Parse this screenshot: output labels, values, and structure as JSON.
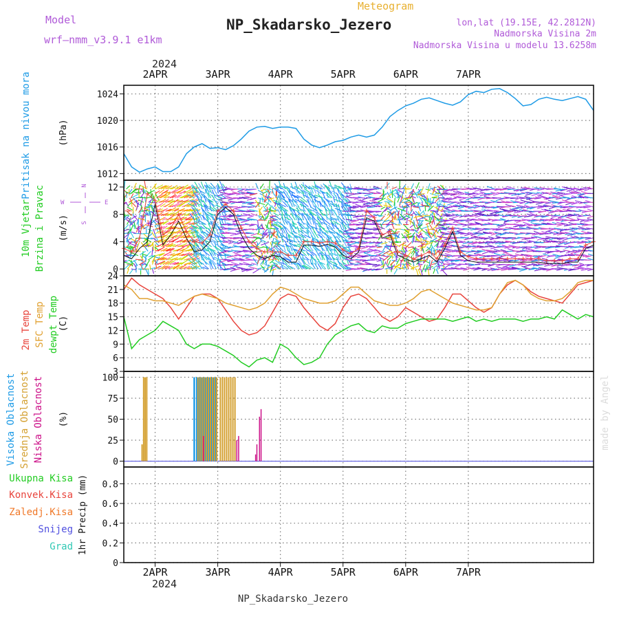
{
  "header": {
    "model_label": "Model",
    "model_name": "wrf—nmm_v3.9.1  e1km",
    "meteogram_label": "Meteogram",
    "station": "NP_Skadarsko_Jezero",
    "lonlat": "lon,lat (19.15E, 42.2812N)",
    "altitude": "Nadmorska Visina 2m",
    "model_altitude": "Nadmorska Visina u modelu 13.6258m",
    "footer_station": "NP_Skadarsko_Jezero",
    "watermark": "made by Angel"
  },
  "colors": {
    "pressure": "#1e9be6",
    "temp2m": "#e8443c",
    "sfc": "#e0a030",
    "dewpt": "#22cc22",
    "high_cloud": "#1e9be6",
    "mid_cloud": "#d4a030",
    "low_cloud": "#cc1088",
    "header_purple": "#b05ad8",
    "header_orange": "#e8b030",
    "total_precip": "#22cc22",
    "conv_precip": "#e8443c",
    "frozen_precip": "#f07828",
    "snow": "#5050e0",
    "hail": "#30c8b4"
  },
  "chart_data": [
    {
      "id": "pressure",
      "type": "line",
      "ylabel": "(hPa)",
      "side_labels": [
        "Pritisak na nivou mora"
      ],
      "yticks": [
        1012,
        1016,
        1020,
        1024
      ],
      "ylim": [
        1011,
        1025.3
      ],
      "x_start": 0,
      "x_step": 3,
      "series": [
        {
          "values": [
            1015.0,
            1013.0,
            1012.2,
            1012.7,
            1013.0,
            1012.3,
            1012.3,
            1013.0,
            1015.0,
            1016.0,
            1016.5,
            1015.8,
            1015.9,
            1015.6,
            1016.2,
            1017.2,
            1018.4,
            1019.0,
            1019.1,
            1018.8,
            1019.0,
            1019.0,
            1018.8,
            1017.2,
            1016.3,
            1015.9,
            1016.3,
            1016.8,
            1017.0,
            1017.5,
            1017.8,
            1017.5,
            1017.8,
            1019.0,
            1020.6,
            1021.5,
            1022.2,
            1022.6,
            1023.2,
            1023.4,
            1023.0,
            1022.6,
            1022.3,
            1022.8,
            1023.9,
            1024.4,
            1024.2,
            1024.7,
            1024.8,
            1024.2,
            1023.3,
            1022.2,
            1022.4,
            1023.2,
            1023.5,
            1023.2,
            1023.0,
            1023.3,
            1023.6,
            1023.2,
            1021.5
          ]
        }
      ]
    },
    {
      "id": "wind",
      "type": "line",
      "ylabel": "(m/s)",
      "side_labels": [
        "10m Vjetar",
        "Brzina i Pravac"
      ],
      "compass": [
        "N",
        "W",
        "E",
        "S"
      ],
      "yticks": [
        0,
        4,
        8,
        12
      ],
      "ylim": [
        -1,
        13
      ],
      "x_start": 0,
      "x_step": 3,
      "series": [
        {
          "name": "speed",
          "values": [
            2.0,
            1.5,
            3.0,
            4.0,
            9.5,
            3.5,
            5.0,
            7.0,
            4.5,
            2.5,
            2.8,
            4.0,
            8.0,
            9.0,
            8.0,
            5.0,
            3.0,
            2.0,
            1.5,
            2.0,
            1.8,
            1.0,
            1.0,
            3.5,
            3.5,
            3.3,
            3.6,
            3.2,
            2.0,
            1.5,
            2.5,
            7.5,
            7.0,
            4.5,
            5.0,
            2.0,
            1.5,
            1.0,
            1.5,
            2.0,
            1.0,
            3.0,
            5.5,
            2.0,
            1.2,
            1.0,
            1.0,
            1.0,
            1.0,
            1.0,
            1.0,
            1.0,
            1.0,
            1.0,
            0.8,
            0.8,
            0.8,
            1.0,
            1.0,
            3.0,
            3.5
          ]
        },
        {
          "name": "gust",
          "values": [
            3.0,
            2.5,
            4.5,
            11.0,
            10.0,
            5.0,
            6.0,
            8.0,
            5.5,
            4.0,
            3.8,
            5.0,
            8.5,
            9.5,
            8.5,
            6.0,
            4.0,
            3.0,
            2.5,
            2.5,
            2.5,
            2.0,
            2.0,
            4.0,
            4.0,
            3.8,
            4.0,
            3.8,
            2.8,
            2.2,
            3.0,
            8.5,
            7.5,
            5.0,
            5.5,
            2.5,
            2.0,
            1.5,
            2.0,
            2.5,
            1.5,
            3.5,
            6.0,
            2.5,
            1.8,
            1.5,
            1.5,
            1.5,
            1.5,
            1.5,
            1.5,
            1.5,
            1.5,
            1.5,
            1.2,
            1.2,
            1.2,
            1.5,
            1.5,
            3.5,
            4.0
          ]
        }
      ],
      "direction_bands": [
        {
          "start": 0,
          "end": 12,
          "palette": "mixed"
        },
        {
          "start": 12,
          "end": 27,
          "palette": "warm"
        },
        {
          "start": 27,
          "end": 39,
          "palette": "cool"
        },
        {
          "start": 39,
          "end": 51,
          "palette": "violet"
        },
        {
          "start": 51,
          "end": 59,
          "palette": "mixed"
        },
        {
          "start": 59,
          "end": 87,
          "palette": "cool"
        },
        {
          "start": 87,
          "end": 99,
          "palette": "violet"
        },
        {
          "start": 99,
          "end": 123,
          "palette": "mixed"
        },
        {
          "start": 123,
          "end": 159,
          "palette": "violet"
        },
        {
          "start": 159,
          "end": 180,
          "palette": "violet"
        }
      ]
    },
    {
      "id": "temperature",
      "type": "line",
      "ylabel": "(C)",
      "side_labels": [
        "2m Temp",
        "SFC Temp",
        "dewpt Temp"
      ],
      "yticks": [
        3,
        6,
        9,
        12,
        15,
        18,
        21,
        24
      ],
      "ylim": [
        3,
        24
      ],
      "x_start": 0,
      "x_step": 3,
      "series": [
        {
          "name": "2m Temp",
          "values": [
            21.0,
            23.5,
            22.0,
            21.0,
            20.0,
            19.0,
            17.0,
            14.5,
            17.0,
            19.5,
            20.0,
            20.0,
            19.0,
            16.5,
            14.0,
            12.0,
            11.0,
            11.5,
            13.0,
            16.0,
            19.0,
            20.0,
            19.5,
            17.0,
            15.0,
            13.0,
            12.0,
            13.5,
            17.0,
            19.5,
            20.0,
            19.0,
            17.0,
            15.0,
            14.0,
            15.0,
            17.0,
            16.0,
            15.0,
            14.0,
            14.5,
            17.0,
            20.0,
            20.0,
            18.5,
            17.0,
            16.0,
            17.0,
            20.0,
            22.0,
            23.0,
            22.0,
            20.5,
            19.5,
            19.0,
            18.5,
            18.0,
            20.0,
            22.0,
            22.5,
            23.0
          ]
        },
        {
          "name": "SFC Temp",
          "values": [
            22.0,
            21.0,
            19.0,
            19.0,
            18.5,
            18.5,
            18.0,
            17.5,
            18.5,
            19.5,
            20.0,
            19.5,
            19.0,
            18.0,
            17.5,
            17.0,
            16.5,
            17.0,
            18.0,
            20.0,
            21.5,
            21.0,
            20.0,
            19.0,
            18.5,
            18.0,
            18.0,
            18.5,
            20.0,
            21.5,
            21.5,
            20.0,
            18.5,
            18.0,
            17.5,
            17.5,
            18.0,
            19.0,
            20.5,
            21.0,
            20.0,
            19.0,
            18.0,
            17.5,
            17.0,
            16.5,
            16.5,
            17.0,
            20.0,
            22.5,
            23.0,
            22.0,
            20.0,
            19.0,
            18.5,
            18.5,
            19.0,
            20.5,
            22.5,
            23.0,
            23.0
          ]
        },
        {
          "name": "dewpt Temp",
          "values": [
            15.0,
            8.0,
            10.0,
            11.0,
            12.0,
            14.0,
            13.0,
            12.0,
            9.0,
            8.0,
            9.0,
            9.0,
            8.5,
            7.5,
            6.5,
            5.0,
            4.0,
            5.5,
            6.0,
            5.0,
            9.0,
            8.0,
            6.0,
            4.5,
            5.0,
            6.0,
            9.0,
            11.0,
            12.0,
            13.0,
            13.5,
            12.0,
            11.5,
            13.0,
            12.5,
            12.5,
            13.5,
            14.0,
            14.5,
            14.5,
            14.5,
            14.5,
            14.0,
            14.5,
            15.0,
            14.0,
            14.5,
            14.0,
            14.5,
            14.5,
            14.5,
            14.0,
            14.5,
            14.5,
            15.0,
            14.5,
            16.5,
            15.5,
            14.5,
            15.5,
            15.0
          ]
        }
      ]
    },
    {
      "id": "cloud",
      "type": "bar",
      "ylabel": "(%)",
      "side_labels": [
        "Visoka Oblacnost",
        "Srednja Oblacnost",
        "Niska Oblacnost"
      ],
      "yticks": [
        0,
        25,
        50,
        75,
        100
      ],
      "ylim": [
        -7,
        107
      ],
      "series": [
        {
          "name": "Visoka Oblacnost",
          "bars": [
            [
              27.0,
              100
            ],
            [
              28.0,
              100
            ],
            [
              28.8,
              100
            ],
            [
              29.6,
              100
            ],
            [
              30.4,
              100
            ],
            [
              31.2,
              100
            ],
            [
              32.0,
              100
            ],
            [
              32.8,
              100
            ],
            [
              33.6,
              100
            ],
            [
              34.4,
              100
            ],
            [
              35.2,
              100
            ]
          ]
        },
        {
          "name": "Srednja Oblacnost",
          "bars": [
            [
              7.0,
              20
            ],
            [
              7.6,
              100
            ],
            [
              8.2,
              100
            ],
            [
              8.8,
              100
            ],
            [
              28.4,
              100
            ],
            [
              29.2,
              100
            ],
            [
              30.0,
              100
            ],
            [
              30.8,
              100
            ],
            [
              31.6,
              100
            ],
            [
              32.4,
              100
            ],
            [
              33.2,
              100
            ],
            [
              34.0,
              100
            ],
            [
              34.8,
              100
            ],
            [
              35.6,
              100
            ],
            [
              37.0,
              100
            ],
            [
              37.8,
              100
            ],
            [
              38.6,
              100
            ],
            [
              39.4,
              100
            ],
            [
              40.2,
              100
            ],
            [
              41.0,
              100
            ],
            [
              41.8,
              100
            ],
            [
              42.6,
              100
            ]
          ]
        },
        {
          "name": "Niska Oblacnost",
          "bars": [
            [
              30.5,
              30
            ],
            [
              43.3,
              25
            ],
            [
              44.0,
              30
            ],
            [
              50.5,
              8
            ],
            [
              51.0,
              20
            ],
            [
              52.0,
              53
            ],
            [
              52.6,
              62
            ]
          ]
        }
      ]
    },
    {
      "id": "precip",
      "type": "bar",
      "ylabel": "1hr Precip (mm)",
      "side_labels": [
        "Ukupna Kisa",
        "Konvek.Kisa",
        "Zaledj.Kisa",
        "Snijeg",
        "Grad"
      ],
      "yticks": [
        0,
        0.2,
        0.4,
        0.6,
        0.8
      ],
      "ylim": [
        0,
        0.97
      ],
      "series": []
    }
  ],
  "x_axis": {
    "hours_total": 180,
    "top_year": "2024",
    "bottom_year": "2024",
    "ticks": [
      {
        "label": "2APR",
        "hour": 12
      },
      {
        "label": "3APR",
        "hour": 36
      },
      {
        "label": "4APR",
        "hour": 60
      },
      {
        "label": "5APR",
        "hour": 84
      },
      {
        "label": "6APR",
        "hour": 108
      },
      {
        "label": "7APR",
        "hour": 132
      }
    ]
  }
}
